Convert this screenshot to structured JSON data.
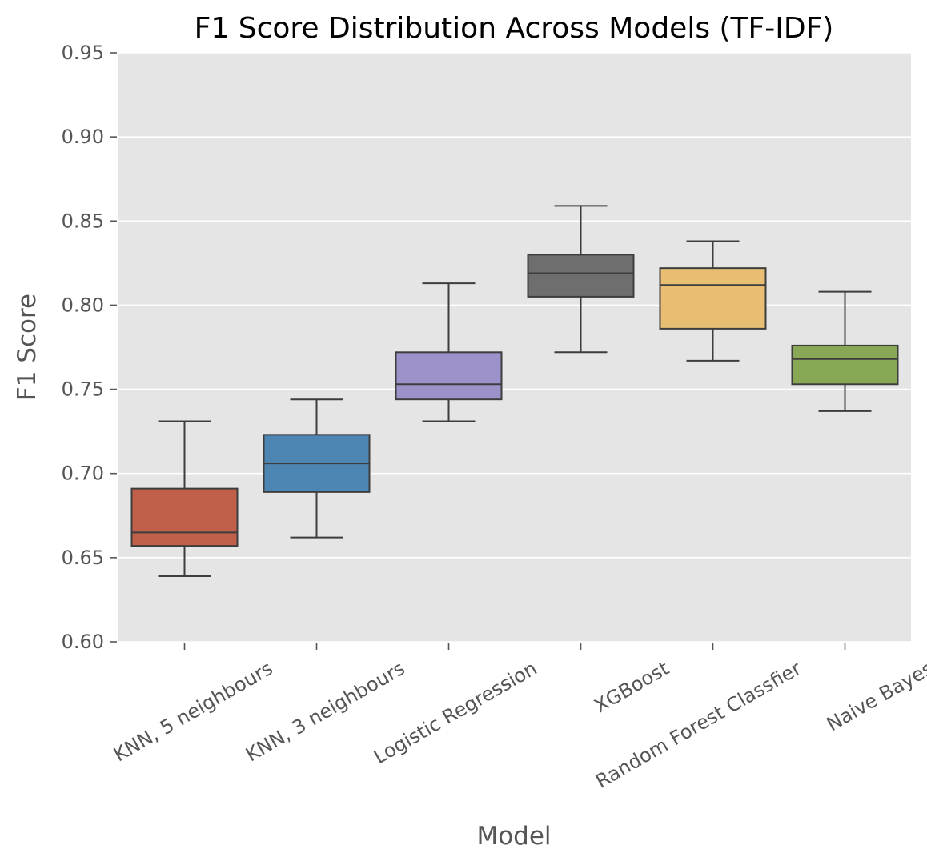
{
  "chart_data": {
    "type": "box",
    "title": "F1 Score Distribution Across Models (TF-IDF)",
    "xlabel": "Model",
    "ylabel": "F1 Score",
    "ylim": [
      0.6,
      0.95
    ],
    "yticks": [
      "0.60",
      "0.65",
      "0.70",
      "0.75",
      "0.80",
      "0.85",
      "0.90",
      "0.95"
    ],
    "grid": true,
    "background": "#e5e5e5",
    "categories": [
      "KNN, 5 neighbours",
      "KNN, 3 neighbours",
      "Logistic Regression",
      "XGBoost",
      "Random Forest Classfier",
      "Naive Bayes"
    ],
    "boxes": [
      {
        "min": 0.639,
        "q1": 0.657,
        "median": 0.665,
        "q3": 0.691,
        "max": 0.731,
        "color": "#c1604a"
      },
      {
        "min": 0.662,
        "q1": 0.689,
        "median": 0.706,
        "q3": 0.723,
        "max": 0.744,
        "color": "#4e86b3"
      },
      {
        "min": 0.731,
        "q1": 0.744,
        "median": 0.753,
        "q3": 0.772,
        "max": 0.813,
        "color": "#9c92c9"
      },
      {
        "min": 0.772,
        "q1": 0.805,
        "median": 0.819,
        "q3": 0.83,
        "max": 0.859,
        "color": "#6e6e6e"
      },
      {
        "min": 0.767,
        "q1": 0.786,
        "median": 0.812,
        "q3": 0.822,
        "max": 0.838,
        "color": "#e8bf72"
      },
      {
        "min": 0.737,
        "q1": 0.753,
        "median": 0.768,
        "q3": 0.776,
        "max": 0.808,
        "color": "#88a856"
      }
    ]
  }
}
